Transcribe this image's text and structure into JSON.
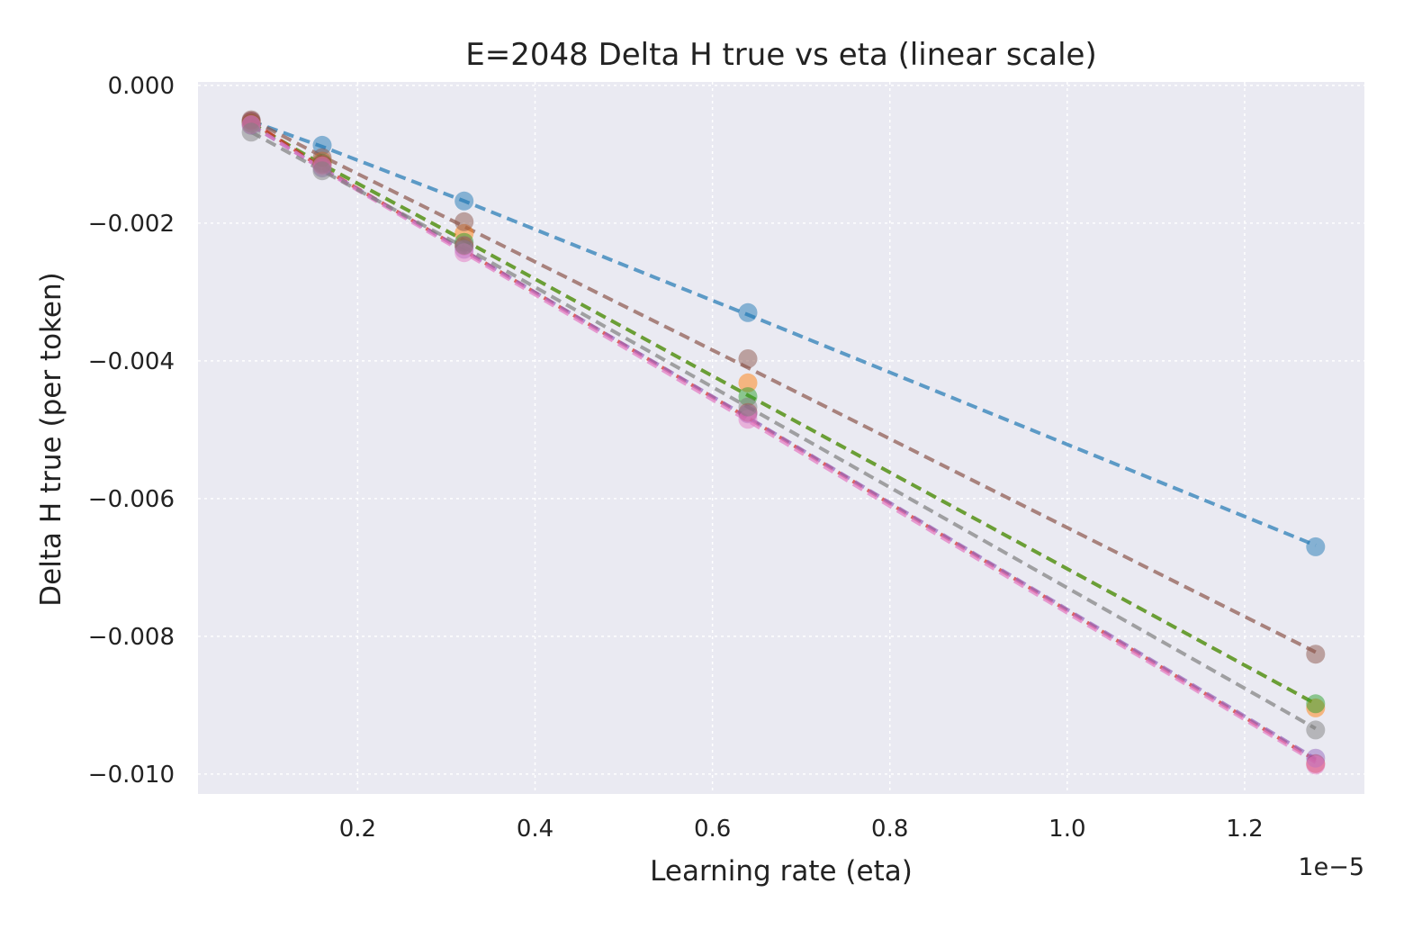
{
  "chart_data": {
    "type": "scatter",
    "title": "E=2048 Delta H true vs eta (linear scale)",
    "xlabel": "Learning rate (eta)",
    "ylabel": "Delta H true (per token)",
    "x_offset_label": "1e−5",
    "xlim": [
      0.02,
      1.335
    ],
    "ylim": [
      -0.01029,
      5e-05
    ],
    "x_ticks": [
      {
        "value": 0.2,
        "label": "0.2"
      },
      {
        "value": 0.4,
        "label": "0.4"
      },
      {
        "value": 0.6,
        "label": "0.6"
      },
      {
        "value": 0.8,
        "label": "0.8"
      },
      {
        "value": 1.0,
        "label": "1.0"
      },
      {
        "value": 1.2,
        "label": "1.2"
      }
    ],
    "y_ticks": [
      {
        "value": 0.0,
        "label": "0.000"
      },
      {
        "value": -0.002,
        "label": "−0.002"
      },
      {
        "value": -0.004,
        "label": "−0.004"
      },
      {
        "value": -0.006,
        "label": "−0.006"
      },
      {
        "value": -0.008,
        "label": "−0.008"
      },
      {
        "value": -0.01,
        "label": "−0.010"
      }
    ],
    "grid": true,
    "background": "#eaeaf2",
    "x": [
      0.08,
      0.16,
      0.32,
      0.64,
      1.28
    ],
    "series": [
      {
        "color": "#1f77b4",
        "points": [
          -0.00052,
          -0.00087,
          -0.00168,
          -0.0033,
          -0.0067
        ],
        "fit": [
          -0.00052,
          -0.00089,
          -0.00168,
          -0.00333,
          -0.00668
        ]
      },
      {
        "color": "#ff7f0e",
        "points": [
          -0.00055,
          -0.0011,
          -0.00215,
          -0.00432,
          -0.00904
        ],
        "fit": [
          -0.00055,
          -0.00115,
          -0.00225,
          -0.0045,
          -0.00898
        ]
      },
      {
        "color": "#2ca02c",
        "points": [
          -0.00055,
          -0.00113,
          -0.00228,
          -0.00452,
          -0.00898
        ],
        "fit": [
          -0.00055,
          -0.00115,
          -0.00225,
          -0.0045,
          -0.00898
        ]
      },
      {
        "color": "#d62728",
        "points": [
          -0.00052,
          -0.00115,
          -0.00233,
          -0.00475,
          -0.00985
        ],
        "fit": [
          -0.00052,
          -0.0012,
          -0.0024,
          -0.00483,
          -0.0098
        ]
      },
      {
        "color": "#9467bd",
        "points": [
          -0.00058,
          -0.0012,
          -0.00238,
          -0.00477,
          -0.00977
        ],
        "fit": [
          -0.00058,
          -0.00121,
          -0.0024,
          -0.00482,
          -0.00978
        ]
      },
      {
        "color": "#8c564b",
        "points": [
          -0.0005,
          -0.00105,
          -0.00198,
          -0.00397,
          -0.00826
        ],
        "fit": [
          -0.0005,
          -0.00103,
          -0.00205,
          -0.0041,
          -0.00823
        ]
      },
      {
        "color": "#e377c2",
        "points": [
          -0.00057,
          -0.00117,
          -0.00243,
          -0.00485,
          -0.00987
        ],
        "fit": [
          -0.00057,
          -0.00122,
          -0.00243,
          -0.00487,
          -0.00983
        ]
      },
      {
        "color": "#7f7f7f",
        "points": [
          -0.00068,
          -0.00124,
          -0.00232,
          -0.00467,
          -0.00936
        ],
        "fit": [
          -0.00068,
          -0.00124,
          -0.00235,
          -0.00467,
          -0.00934
        ]
      }
    ]
  }
}
